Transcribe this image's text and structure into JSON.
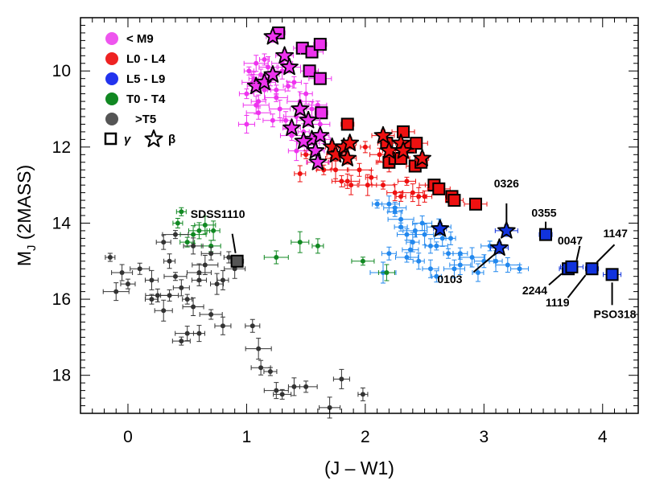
{
  "chart_data": {
    "type": "scatter",
    "title": "",
    "xlabel": "(J – W1)",
    "ylabel_main": "M",
    "ylabel_sub": "J",
    "ylabel_rest": " (2MASS)",
    "xlim": [
      -0.4,
      4.3
    ],
    "ylim": [
      8.6,
      19.0
    ],
    "y_inverted": true,
    "x_ticks": [
      0,
      1,
      2,
      3,
      4
    ],
    "x_tick_labels": [
      "0",
      "1",
      "2",
      "3",
      "4"
    ],
    "y_ticks": [
      10,
      12,
      14,
      16,
      18
    ],
    "y_tick_labels": [
      "10",
      "12",
      "14",
      "16",
      "18"
    ],
    "grid": false,
    "legend_position": "top-left",
    "colors": {
      "lt_m9": "#ee33ee",
      "l0_l4": "#ee1111",
      "l5_l9": "#2222dd",
      "t0_t4": "#118822",
      "gt_t5": "#333333",
      "l5_l9_field": "#2288ee",
      "sdss1110": "#555555"
    },
    "legend": [
      {
        "label": "< M9",
        "color": "#ee55ee"
      },
      {
        "label": "L0 - L4",
        "color": "#ee2222"
      },
      {
        "label": "L5 - L9",
        "color": "#2233ee"
      },
      {
        "label": "T0 - T4",
        "color": "#118822"
      },
      {
        "label": ">T5",
        "color": "#555555"
      }
    ],
    "legend_markers": {
      "square_label": "γ",
      "star_label": "β"
    },
    "series": [
      {
        "name": "< M9 field",
        "key": "lt_m9",
        "points": [
          [
            1.02,
            10.0
          ],
          [
            1.05,
            10.3
          ],
          [
            1.0,
            10.6
          ],
          [
            1.08,
            10.9
          ],
          [
            1.12,
            10.1
          ],
          [
            1.15,
            10.5
          ],
          [
            1.1,
            11.1
          ],
          [
            1.18,
            9.9
          ],
          [
            1.2,
            10.2
          ],
          [
            1.25,
            10.7
          ],
          [
            1.3,
            10.0
          ],
          [
            1.35,
            10.4
          ],
          [
            1.28,
            11.0
          ],
          [
            1.4,
            10.3
          ],
          [
            1.45,
            10.8
          ],
          [
            1.22,
            11.3
          ],
          [
            1.5,
            10.6
          ],
          [
            1.55,
            11.0
          ],
          [
            1.6,
            10.9
          ],
          [
            1.48,
            11.6
          ],
          [
            1.38,
            11.7
          ],
          [
            1.0,
            11.4
          ],
          [
            1.15,
            9.7
          ],
          [
            1.3,
            9.8
          ],
          [
            1.1,
            10.8
          ],
          [
            1.42,
            11.2
          ],
          [
            1.62,
            11.4
          ],
          [
            1.65,
            11.8
          ],
          [
            1.08,
            9.8
          ],
          [
            1.25,
            10.5
          ],
          [
            1.33,
            11.3
          ],
          [
            1.52,
            11.9
          ],
          [
            1.42,
            12.1
          ],
          [
            1.06,
            10.2
          ]
        ]
      },
      {
        "name": "L0 - L4 field",
        "key": "l0_l4",
        "points": [
          [
            1.5,
            12.2
          ],
          [
            1.6,
            12.4
          ],
          [
            1.65,
            12.6
          ],
          [
            1.75,
            12.6
          ],
          [
            1.8,
            12.9
          ],
          [
            1.88,
            13.0
          ],
          [
            1.95,
            12.6
          ],
          [
            2.02,
            13.0
          ],
          [
            2.05,
            12.8
          ],
          [
            2.15,
            13.0
          ],
          [
            2.25,
            13.2
          ],
          [
            2.3,
            13.3
          ],
          [
            2.4,
            13.2
          ],
          [
            2.5,
            13.3
          ],
          [
            2.2,
            12.4
          ],
          [
            2.12,
            12.2
          ],
          [
            1.72,
            12.3
          ],
          [
            1.85,
            12.9
          ],
          [
            2.35,
            12.9
          ],
          [
            1.45,
            12.7
          ],
          [
            2.55,
            13.0
          ],
          [
            2.45,
            13.3
          ],
          [
            2.0,
            12.0
          ]
        ]
      },
      {
        "name": "L5 - L9 field",
        "key": "l5_l9_field",
        "points": [
          [
            2.1,
            13.5
          ],
          [
            2.2,
            13.5
          ],
          [
            2.25,
            13.7
          ],
          [
            2.3,
            13.9
          ],
          [
            2.35,
            14.3
          ],
          [
            2.4,
            14.5
          ],
          [
            2.42,
            14.2
          ],
          [
            2.5,
            14.3
          ],
          [
            2.55,
            14.6
          ],
          [
            2.6,
            14.6
          ],
          [
            2.65,
            14.4
          ],
          [
            2.7,
            14.8
          ],
          [
            2.75,
            15.2
          ],
          [
            2.8,
            14.8
          ],
          [
            2.9,
            14.9
          ],
          [
            3.0,
            15.0
          ],
          [
            3.1,
            15.0
          ],
          [
            3.2,
            15.1
          ],
          [
            3.3,
            15.2
          ],
          [
            2.45,
            15.0
          ],
          [
            2.35,
            14.9
          ],
          [
            2.55,
            15.2
          ],
          [
            2.6,
            15.4
          ],
          [
            2.8,
            15.1
          ],
          [
            2.2,
            14.8
          ],
          [
            2.15,
            15.3
          ],
          [
            2.48,
            14.0
          ],
          [
            2.3,
            14.1
          ],
          [
            2.62,
            14.1
          ],
          [
            3.05,
            14.6
          ],
          [
            2.95,
            15.3
          ],
          [
            2.25,
            13.6
          ],
          [
            2.38,
            14.7
          ],
          [
            2.72,
            14.4
          ]
        ]
      },
      {
        "name": "T0 - T4 field",
        "key": "t0_t4",
        "points": [
          [
            0.45,
            13.7
          ],
          [
            0.6,
            14.2
          ],
          [
            0.5,
            14.5
          ],
          [
            0.55,
            14.3
          ],
          [
            0.7,
            14.6
          ],
          [
            0.72,
            14.2
          ],
          [
            1.25,
            14.9
          ],
          [
            1.45,
            14.5
          ],
          [
            1.6,
            14.6
          ],
          [
            1.98,
            15.0
          ],
          [
            2.18,
            15.3
          ],
          [
            0.42,
            14.0
          ],
          [
            0.65,
            14.05
          ]
        ]
      },
      {
        "name": ">T5 field",
        "key": "gt_t5",
        "points": [
          [
            -0.15,
            14.9
          ],
          [
            -0.05,
            15.3
          ],
          [
            0.0,
            15.6
          ],
          [
            -0.1,
            15.8
          ],
          [
            0.1,
            15.2
          ],
          [
            0.2,
            15.5
          ],
          [
            0.25,
            15.9
          ],
          [
            0.3,
            16.3
          ],
          [
            0.35,
            15.0
          ],
          [
            0.4,
            15.4
          ],
          [
            0.45,
            15.7
          ],
          [
            0.5,
            16.0
          ],
          [
            0.55,
            16.2
          ],
          [
            0.6,
            15.5
          ],
          [
            0.65,
            15.1
          ],
          [
            0.7,
            14.8
          ],
          [
            0.75,
            15.6
          ],
          [
            0.5,
            16.9
          ],
          [
            0.45,
            17.1
          ],
          [
            0.6,
            16.9
          ],
          [
            0.7,
            16.4
          ],
          [
            0.8,
            16.7
          ],
          [
            0.85,
            14.9
          ],
          [
            0.9,
            15.2
          ],
          [
            1.05,
            16.7
          ],
          [
            1.1,
            17.3
          ],
          [
            1.12,
            17.8
          ],
          [
            1.2,
            17.9
          ],
          [
            1.25,
            18.4
          ],
          [
            1.3,
            18.5
          ],
          [
            1.4,
            18.3
          ],
          [
            1.5,
            18.3
          ],
          [
            1.8,
            18.1
          ],
          [
            1.98,
            18.5
          ],
          [
            1.7,
            18.85
          ],
          [
            0.3,
            14.5
          ],
          [
            0.4,
            14.3
          ],
          [
            0.55,
            14.6
          ],
          [
            0.2,
            16.0
          ],
          [
            0.6,
            15.3
          ],
          [
            0.35,
            15.9
          ],
          [
            0.8,
            15.5
          ]
        ]
      }
    ],
    "young_objects": [
      {
        "marker": "square",
        "color": "#ee33ee",
        "points": [
          [
            1.27,
            9.0
          ],
          [
            1.47,
            9.4
          ],
          [
            1.55,
            9.5
          ],
          [
            1.62,
            9.3
          ],
          [
            1.53,
            10.0
          ],
          [
            1.62,
            10.2
          ],
          [
            1.63,
            11.1
          ]
        ]
      },
      {
        "marker": "star",
        "color": "#ee33ee",
        "points": [
          [
            1.22,
            9.1
          ],
          [
            1.08,
            10.4
          ],
          [
            1.15,
            10.3
          ],
          [
            1.22,
            10.1
          ],
          [
            1.32,
            9.6
          ],
          [
            1.36,
            9.9
          ],
          [
            1.45,
            11.0
          ],
          [
            1.38,
            11.5
          ],
          [
            1.52,
            11.3
          ],
          [
            1.55,
            11.8
          ],
          [
            1.58,
            12.1
          ],
          [
            1.6,
            12.4
          ],
          [
            1.48,
            11.85
          ],
          [
            1.62,
            11.7
          ]
        ]
      },
      {
        "marker": "square",
        "color": "#ee1111",
        "points": [
          [
            1.85,
            11.4
          ],
          [
            2.18,
            11.9
          ],
          [
            2.2,
            12.4
          ],
          [
            2.25,
            12.3
          ],
          [
            2.3,
            12.3
          ],
          [
            2.32,
            11.6
          ],
          [
            2.38,
            12.0
          ],
          [
            2.42,
            12.5
          ],
          [
            2.43,
            11.9
          ],
          [
            2.47,
            12.4
          ],
          [
            2.58,
            13.0
          ],
          [
            2.62,
            13.1
          ],
          [
            2.73,
            13.3
          ],
          [
            2.75,
            13.4
          ],
          [
            2.93,
            13.5
          ]
        ]
      },
      {
        "marker": "star",
        "color": "#ee1111",
        "points": [
          [
            1.72,
            12.0
          ],
          [
            1.75,
            12.2
          ],
          [
            1.82,
            12.0
          ],
          [
            1.87,
            11.9
          ],
          [
            1.85,
            12.3
          ],
          [
            2.15,
            11.7
          ],
          [
            2.2,
            12.1
          ],
          [
            2.3,
            11.9
          ],
          [
            2.32,
            12.1
          ],
          [
            2.48,
            12.3
          ]
        ]
      },
      {
        "marker": "square",
        "color": "#1133dd",
        "points": [
          [
            3.52,
            14.3
          ],
          [
            3.71,
            15.2
          ],
          [
            3.74,
            15.15
          ],
          [
            3.91,
            15.2
          ],
          [
            4.08,
            15.35
          ]
        ]
      },
      {
        "marker": "star",
        "color": "#1133dd",
        "points": [
          [
            2.63,
            14.15
          ],
          [
            3.13,
            14.65
          ],
          [
            3.19,
            14.2
          ]
        ]
      },
      {
        "marker": "square",
        "color": "#555555",
        "points": [
          [
            0.92,
            15.0
          ]
        ]
      }
    ],
    "annotations": [
      {
        "text": "SDSS1110",
        "x": 0.92,
        "y": 15.0
      },
      {
        "text": "0326",
        "x": 3.19,
        "y": 14.2
      },
      {
        "text": "0355",
        "x": 3.52,
        "y": 14.3
      },
      {
        "text": "0047",
        "x": 3.74,
        "y": 15.15
      },
      {
        "text": "1147",
        "x": 3.91,
        "y": 15.2
      },
      {
        "text": "0103",
        "x": 3.13,
        "y": 14.65
      },
      {
        "text": "2244",
        "x": 3.71,
        "y": 15.2
      },
      {
        "text": "1119",
        "x": 3.91,
        "y": 15.2
      },
      {
        "text": "PSO318",
        "x": 4.08,
        "y": 15.35
      }
    ]
  }
}
